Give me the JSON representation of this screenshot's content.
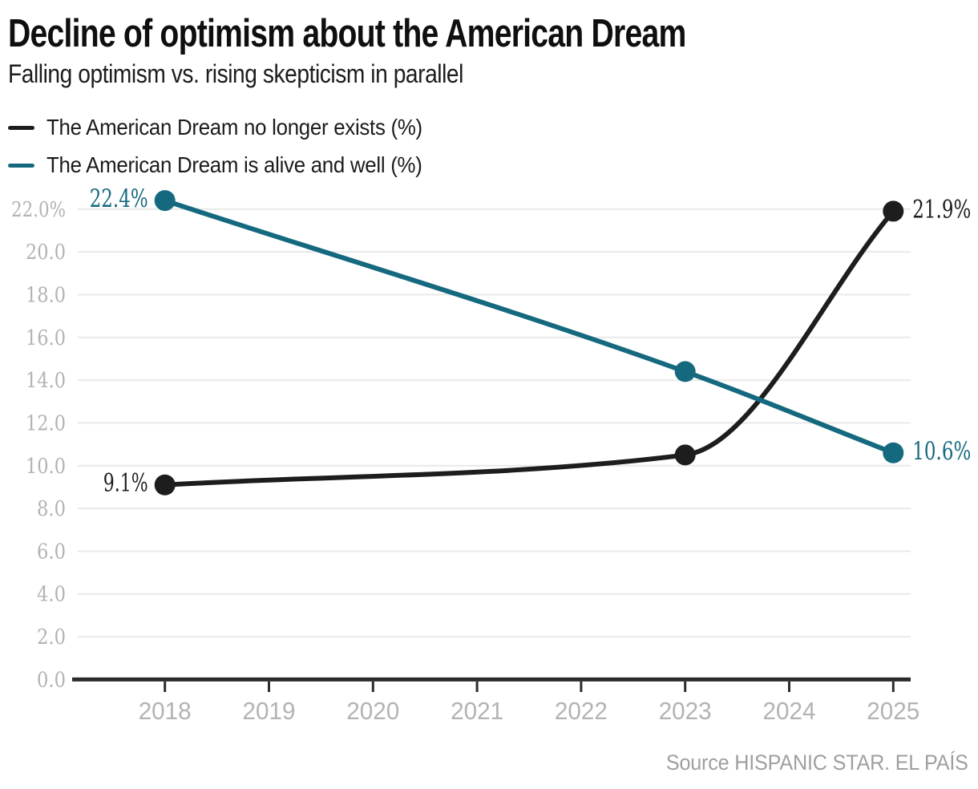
{
  "header": {
    "title": "Decline of optimism about the American Dream",
    "subtitle": "Falling optimism vs. rising skepticism in parallel"
  },
  "legend": {
    "items": [
      {
        "label": "The American Dream no longer exists (%)",
        "color": "#1d1d1d"
      },
      {
        "label": "The American Dream is alive and well (%)",
        "color": "#15697f"
      }
    ]
  },
  "footer": {
    "source": "Source HISPANIC STAR. EL PAÍS"
  },
  "chart_data": {
    "type": "line",
    "title": "Decline of optimism about the American Dream",
    "subtitle": "Falling optimism vs. rising skepticism in parallel",
    "x": [
      2018,
      2023,
      2025
    ],
    "series": [
      {
        "name": "The American Dream no longer exists (%)",
        "color": "#1d1d1d",
        "values": [
          9.1,
          10.5,
          21.9
        ]
      },
      {
        "name": "The American Dream is alive and well (%)",
        "color": "#15697f",
        "values": [
          22.4,
          14.4,
          10.6
        ]
      }
    ],
    "point_labels": [
      {
        "series": 0,
        "year": 2018,
        "text": "9.1%",
        "side": "left"
      },
      {
        "series": 0,
        "year": 2025,
        "text": "21.9%",
        "side": "right"
      },
      {
        "series": 1,
        "year": 2018,
        "text": "22.4%",
        "side": "left"
      },
      {
        "series": 1,
        "year": 2025,
        "text": "10.6%",
        "side": "right"
      }
    ],
    "y_axis": {
      "tick_labels": [
        "22.0%",
        "20.0",
        "18.0",
        "16.0",
        "14.0",
        "12.0",
        "10.0",
        "8.0",
        "6.0",
        "4.0",
        "2.0",
        "0.0"
      ],
      "tick_values": [
        22,
        20,
        18,
        16,
        14,
        12,
        10,
        8,
        6,
        4,
        2,
        0
      ],
      "range": [
        0,
        22.4
      ]
    },
    "x_axis": {
      "tick_labels": [
        "2018",
        "2019",
        "2020",
        "2021",
        "2022",
        "2023",
        "2024",
        "2025"
      ],
      "tick_values": [
        2018,
        2019,
        2020,
        2021,
        2022,
        2023,
        2024,
        2025
      ]
    },
    "grid": true,
    "legend_position": "top-left",
    "colors": {
      "grid_line": "#e9e9e9",
      "axis_line": "#2b2b2b",
      "tick_label": "#b3b3b3",
      "source_text": "#9f9f9f",
      "background": "#ffffff"
    }
  }
}
